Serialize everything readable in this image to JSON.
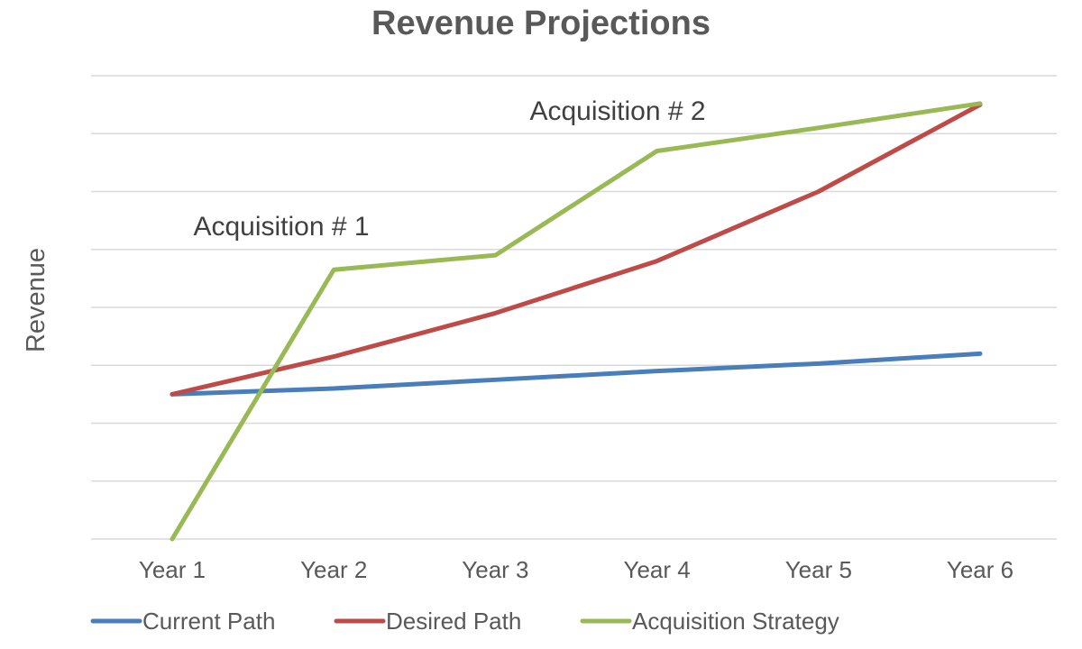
{
  "chart_data": {
    "type": "line",
    "title": "Revenue Projections",
    "xlabel": "",
    "ylabel": "Revenue",
    "categories": [
      "Year 1",
      "Year 2",
      "Year 3",
      "Year 4",
      "Year 5",
      "Year 6"
    ],
    "ylim": [
      0,
      8
    ],
    "grid": true,
    "y_tick_labels_shown": false,
    "legend_position": "bottom",
    "series": [
      {
        "name": "Current Path",
        "color": "#4A7EBB",
        "values": [
          2.5,
          2.6,
          2.75,
          2.9,
          3.03,
          3.2
        ]
      },
      {
        "name": "Desired Path",
        "color": "#BE4B48",
        "values": [
          2.5,
          3.15,
          3.9,
          4.8,
          6.0,
          7.5
        ]
      },
      {
        "name": "Acquisition Strategy",
        "color": "#98B954",
        "values": [
          0,
          4.65,
          4.9,
          6.7,
          7.1,
          7.52
        ]
      }
    ],
    "annotations": [
      {
        "text": "Acquisition # 1"
      },
      {
        "text": "Acquisition # 2"
      }
    ]
  }
}
